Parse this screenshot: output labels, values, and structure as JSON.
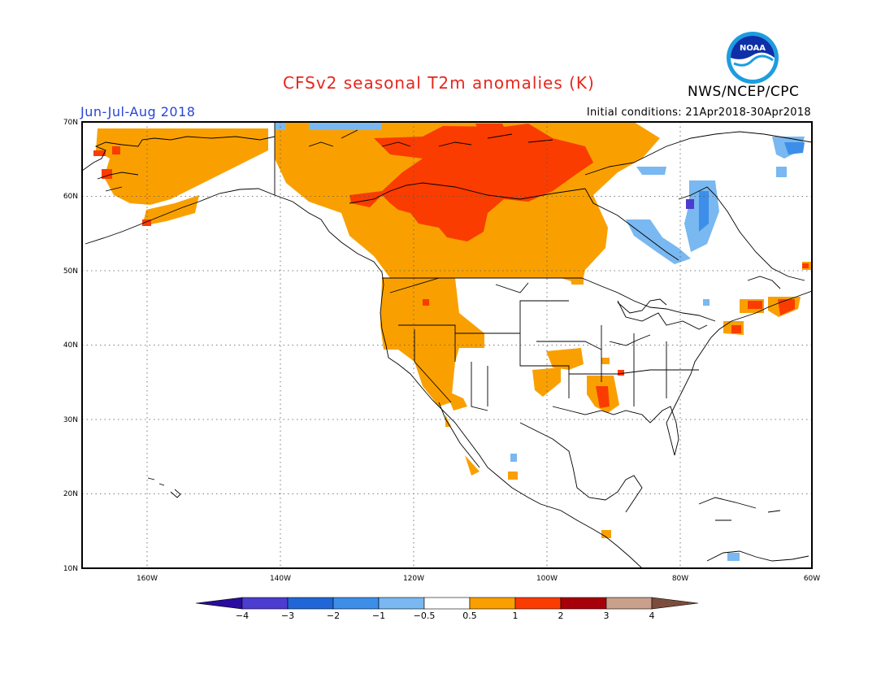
{
  "header": {
    "title": "CFSv2 seasonal T2m anomalies (K)",
    "agency": "NWS/NCEP/CPC",
    "season": "Jun-Jul-Aug 2018",
    "initial_conditions": "Initial conditions: 21Apr2018-30Apr2018",
    "logo_text": "NOAA"
  },
  "map": {
    "lon_range": [
      -172,
      -60
    ],
    "lat_range": [
      10,
      70
    ],
    "lat_labels": [
      "70N",
      "60N",
      "50N",
      "40N",
      "30N",
      "20N",
      "10N"
    ],
    "lon_labels": [
      "160W",
      "140W",
      "120W",
      "100W",
      "80W",
      "60W"
    ],
    "gridlines": "dotted"
  },
  "colorbar": {
    "labels": [
      "−4",
      "−3",
      "−2",
      "−1",
      "−0.5",
      "0.5",
      "1",
      "2",
      "3",
      "4"
    ],
    "colors": [
      "#2a0c9e",
      "#4c3cd0",
      "#2166d6",
      "#3c8ee8",
      "#79b8f0",
      "#ffffff",
      "#f9a000",
      "#fa3c00",
      "#a8000a",
      "#c8a08c",
      "#7c4c3c"
    ]
  }
}
